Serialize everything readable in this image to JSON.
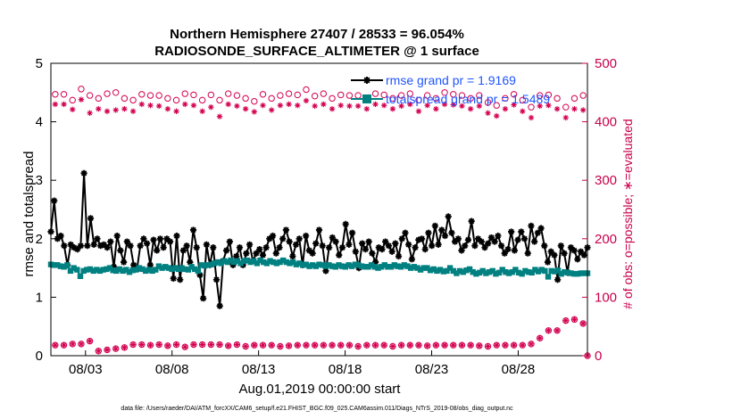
{
  "chart_data": {
    "type": "line",
    "title": "Northern Hemisphere 27407 / 28533 = 96.054%",
    "subtitle": "RADIOSONDE_SURFACE_ALTIMETER @ 1 surface",
    "xlabel": "Aug.01,2019 00:00:00 start",
    "ylabel": "rmse and totalspread",
    "y2label": "# of obs: o=possible; ∗=evaluated",
    "footer": "data file: /Users/raeder/DAI/ATM_forcXX/CAM6_setup/f.e21.FHIST_BGC.f09_025.CAM6assim.011/Diags_NTrS_2019-08/obs_diag_output.nc",
    "xlim": [
      1.0,
      32.0
    ],
    "ylim": [
      0,
      5
    ],
    "y2lim": [
      0,
      500
    ],
    "x_ticks": [
      3,
      8,
      13,
      18,
      23,
      28
    ],
    "x_tick_labels": [
      "08/03",
      "08/08",
      "08/13",
      "08/18",
      "08/23",
      "08/28"
    ],
    "y_ticks": [
      0,
      1,
      2,
      3,
      4,
      5
    ],
    "y2_ticks": [
      0,
      100,
      200,
      300,
      400,
      500
    ],
    "legend": [
      {
        "name": "rmse",
        "label": "rmse grand pr = 1.9169",
        "color": "#000000"
      },
      {
        "name": "totalspread",
        "label": "totalspread grand pr = 1.5489",
        "color": "#008080"
      }
    ],
    "series": [
      {
        "name": "rmse",
        "axis": "left",
        "color": "#000000",
        "marker": "asterisk",
        "values": [
          2.12,
          2.65,
          2.0,
          2.05,
          1.88,
          1.55,
          1.9,
          1.85,
          1.82,
          1.88,
          3.12,
          1.88,
          2.35,
          1.9,
          2.0,
          1.88,
          1.9,
          1.85,
          1.95,
          1.52,
          2.05,
          1.8,
          1.6,
          1.95,
          1.88,
          1.55,
          1.48,
          1.88,
          2.0,
          1.92,
          1.55,
          1.98,
          1.8,
          2.0,
          1.85,
          2.0,
          1.95,
          1.32,
          2.05,
          1.3,
          1.8,
          1.88,
          1.6,
          2.15,
          1.85,
          1.38,
          0.98,
          1.9,
          1.55,
          1.85,
          1.3,
          0.85,
          1.62,
          1.8,
          1.95,
          1.55,
          1.7,
          1.85,
          1.55,
          1.75,
          1.9,
          1.62,
          1.75,
          1.82,
          1.72,
          1.85,
          2.0,
          2.05,
          1.75,
          1.85,
          2.0,
          2.15,
          1.95,
          1.7,
          1.9,
          2.0,
          1.55,
          2.05,
          1.8,
          1.75,
          1.92,
          2.15,
          1.88,
          1.45,
          1.85,
          2.02,
          1.95,
          1.72,
          1.85,
          2.25,
          1.9,
          2.1,
          1.78,
          1.5,
          1.92,
          1.82,
          1.95,
          1.75,
          1.6,
          1.85,
          1.82,
          1.95,
          1.88,
          1.78,
          1.92,
          1.7,
          2.0,
          2.1,
          1.9,
          1.65,
          1.85,
          1.98,
          2.0,
          1.82,
          2.1,
          1.88,
          2.22,
          1.9,
          2.15,
          2.05,
          2.38,
          2.1,
          1.95,
          2.0,
          1.8,
          1.88,
          1.98,
          2.3,
          1.88,
          2.0,
          1.95,
          1.85,
          1.92,
          2.02,
          1.95,
          2.05,
          1.88,
          1.75,
          1.82,
          2.12,
          1.8,
          1.98,
          2.12,
          2.0,
          1.75,
          2.22,
          1.95,
          2.1,
          2.18,
          1.88,
          1.6,
          1.78,
          1.72,
          1.3,
          1.88,
          1.75,
          1.42,
          1.85,
          1.8,
          1.65,
          1.78,
          1.72,
          1.85
        ]
      },
      {
        "name": "totalspread",
        "axis": "left",
        "color": "#008080",
        "marker": "square",
        "values": [
          1.56,
          1.55,
          1.55,
          1.53,
          1.52,
          1.55,
          1.45,
          1.5,
          1.47,
          1.36,
          1.45,
          1.47,
          1.48,
          1.45,
          1.47,
          1.45,
          1.47,
          1.48,
          1.5,
          1.46,
          1.45,
          1.48,
          1.45,
          1.47,
          1.43,
          1.46,
          1.47,
          1.5,
          1.48,
          1.45,
          1.47,
          1.45,
          1.47,
          1.53,
          1.5,
          1.52,
          1.5,
          1.48,
          1.5,
          1.48,
          1.5,
          1.48,
          1.47,
          1.52,
          1.48,
          1.45,
          1.55,
          1.54,
          1.55,
          1.56,
          1.58,
          1.6,
          1.58,
          1.62,
          1.6,
          1.63,
          1.6,
          1.62,
          1.58,
          1.62,
          1.63,
          1.6,
          1.62,
          1.58,
          1.63,
          1.6,
          1.58,
          1.62,
          1.6,
          1.58,
          1.6,
          1.63,
          1.6,
          1.58,
          1.6,
          1.56,
          1.58,
          1.55,
          1.56,
          1.53,
          1.55,
          1.53,
          1.56,
          1.55,
          1.53,
          1.55,
          1.53,
          1.52,
          1.55,
          1.53,
          1.52,
          1.55,
          1.53,
          1.56,
          1.55,
          1.53,
          1.52,
          1.52,
          1.55,
          1.52,
          1.5,
          1.52,
          1.55,
          1.52,
          1.52,
          1.55,
          1.53,
          1.52,
          1.55,
          1.53,
          1.5,
          1.52,
          1.5,
          1.47,
          1.5,
          1.5,
          1.46,
          1.48,
          1.45,
          1.47,
          1.44,
          1.45,
          1.5,
          1.45,
          1.41,
          1.45,
          1.43,
          1.46,
          1.48,
          1.43,
          1.4,
          1.42,
          1.45,
          1.41,
          1.43,
          1.45,
          1.4,
          1.42,
          1.47,
          1.43,
          1.41,
          1.43,
          1.47,
          1.42,
          1.4,
          1.45,
          1.43,
          1.42,
          1.47,
          1.44,
          1.47,
          1.45,
          1.35,
          1.45,
          1.44,
          1.46,
          1.4,
          1.43,
          1.42,
          1.41,
          1.4,
          1.4,
          1.41,
          1.41,
          1.41
        ]
      },
      {
        "name": "obs_possible",
        "axis": "right",
        "color": "#d40050",
        "marker": "circle",
        "x": [
          1.25,
          1.75,
          2.25,
          2.75,
          3.25,
          3.75,
          4.25,
          4.75,
          5.25,
          5.75,
          6.25,
          6.75,
          7.25,
          7.75,
          8.25,
          8.75,
          9.25,
          9.75,
          10.25,
          10.75,
          11.25,
          11.75,
          12.25,
          12.75,
          13.25,
          13.75,
          14.25,
          14.75,
          15.25,
          15.75,
          16.25,
          16.75,
          17.25,
          17.75,
          18.25,
          18.75,
          19.25,
          19.75,
          20.25,
          20.75,
          21.25,
          21.75,
          22.25,
          22.75,
          23.25,
          23.75,
          24.25,
          24.75,
          25.25,
          25.75,
          26.25,
          26.75,
          27.25,
          27.75,
          28.25,
          28.75,
          29.25,
          29.75,
          30.25,
          30.75,
          31.25,
          31.75
        ],
        "values": [
          447,
          447,
          437,
          456,
          445,
          440,
          448,
          450,
          440,
          437,
          447,
          445,
          445,
          440,
          437,
          448,
          446,
          437,
          446,
          437,
          448,
          445,
          440,
          435,
          447,
          440,
          445,
          448,
          446,
          455,
          444,
          448,
          440,
          446,
          445,
          445,
          440,
          448,
          446,
          440,
          445,
          448,
          437,
          445,
          440,
          450,
          447,
          445,
          440,
          445,
          433,
          428,
          440,
          447,
          437,
          425,
          445,
          446,
          440,
          425,
          440,
          445
        ]
      },
      {
        "name": "obs_evaluated",
        "axis": "right",
        "color": "#d40050",
        "marker": "asterisk",
        "x": [
          1.25,
          1.75,
          2.25,
          2.75,
          3.25,
          3.75,
          4.25,
          4.75,
          5.25,
          5.75,
          6.25,
          6.75,
          7.25,
          7.75,
          8.25,
          8.75,
          9.25,
          9.75,
          10.25,
          10.75,
          11.25,
          11.75,
          12.25,
          12.75,
          13.25,
          13.75,
          14.25,
          14.75,
          15.25,
          15.75,
          16.25,
          16.75,
          17.25,
          17.75,
          18.25,
          18.75,
          19.25,
          19.75,
          20.25,
          20.75,
          21.25,
          21.75,
          22.25,
          22.75,
          23.25,
          23.75,
          24.25,
          24.75,
          25.25,
          25.75,
          26.25,
          26.75,
          27.25,
          27.75,
          28.25,
          28.75,
          29.25,
          29.75,
          30.25,
          30.75,
          31.25,
          31.75
        ],
        "values": [
          430,
          430,
          421,
          438,
          415,
          422,
          418,
          420,
          422,
          418,
          430,
          428,
          427,
          422,
          418,
          430,
          428,
          418,
          425,
          409,
          430,
          427,
          422,
          417,
          428,
          420,
          428,
          430,
          428,
          436,
          427,
          430,
          422,
          428,
          427,
          427,
          422,
          430,
          428,
          422,
          427,
          430,
          418,
          428,
          422,
          430,
          429,
          427,
          422,
          427,
          415,
          410,
          422,
          429,
          418,
          407,
          427,
          428,
          422,
          407,
          422,
          420
        ]
      },
      {
        "name": "obs_possible_low",
        "axis": "right",
        "color": "#d40050",
        "marker": "circle",
        "x": [
          1.25,
          1.75,
          2.25,
          2.75,
          3.25,
          3.75,
          4.25,
          4.75,
          5.25,
          5.75,
          6.25,
          6.75,
          7.25,
          7.75,
          8.25,
          8.75,
          9.25,
          9.75,
          10.25,
          10.75,
          11.25,
          11.75,
          12.25,
          12.75,
          13.25,
          13.75,
          14.25,
          14.75,
          15.25,
          15.75,
          16.25,
          16.75,
          17.25,
          17.75,
          18.25,
          18.75,
          19.25,
          19.75,
          20.25,
          20.75,
          21.25,
          21.75,
          22.25,
          22.75,
          23.25,
          23.75,
          24.25,
          24.75,
          25.25,
          25.75,
          26.25,
          26.75,
          27.25,
          27.75,
          28.25,
          28.75,
          29.25,
          29.75,
          30.25,
          30.75,
          31.25,
          31.75,
          32.0
        ],
        "values": [
          18,
          18,
          20,
          20,
          25,
          8,
          10,
          12,
          14,
          19,
          19,
          18,
          19,
          17,
          19,
          15,
          19,
          19,
          19,
          19,
          17,
          19,
          16,
          18,
          18,
          18,
          16,
          17,
          18,
          18,
          18,
          18,
          18,
          18,
          18,
          16,
          18,
          18,
          18,
          16,
          18,
          18,
          18,
          17,
          18,
          18,
          18,
          18,
          18,
          17,
          16,
          18,
          18,
          18,
          18,
          20,
          30,
          43,
          43,
          60,
          62,
          55,
          0
        ]
      },
      {
        "name": "obs_evaluated_low",
        "axis": "right",
        "color": "#d40050",
        "marker": "asterisk",
        "x": [
          1.25,
          1.75,
          2.25,
          2.75,
          3.25,
          3.75,
          4.25,
          4.75,
          5.25,
          5.75,
          6.25,
          6.75,
          7.25,
          7.75,
          8.25,
          8.75,
          9.25,
          9.75,
          10.25,
          10.75,
          11.25,
          11.75,
          12.25,
          12.75,
          13.25,
          13.75,
          14.25,
          14.75,
          15.25,
          15.75,
          16.25,
          16.75,
          17.25,
          17.75,
          18.25,
          18.75,
          19.25,
          19.75,
          20.25,
          20.75,
          21.25,
          21.75,
          22.25,
          22.75,
          23.25,
          23.75,
          24.25,
          24.75,
          25.25,
          25.75,
          26.25,
          26.75,
          27.25,
          27.75,
          28.25,
          28.75,
          29.25,
          29.75,
          30.25,
          30.75,
          31.25,
          31.75,
          32.0
        ],
        "values": [
          18,
          18,
          20,
          20,
          25,
          8,
          10,
          12,
          14,
          19,
          19,
          18,
          19,
          17,
          19,
          15,
          19,
          19,
          19,
          19,
          17,
          19,
          16,
          18,
          18,
          18,
          16,
          17,
          18,
          18,
          18,
          18,
          18,
          18,
          18,
          16,
          18,
          18,
          18,
          16,
          18,
          18,
          18,
          17,
          18,
          18,
          18,
          18,
          18,
          17,
          16,
          18,
          18,
          18,
          18,
          20,
          30,
          43,
          43,
          60,
          62,
          55,
          0
        ]
      }
    ]
  }
}
